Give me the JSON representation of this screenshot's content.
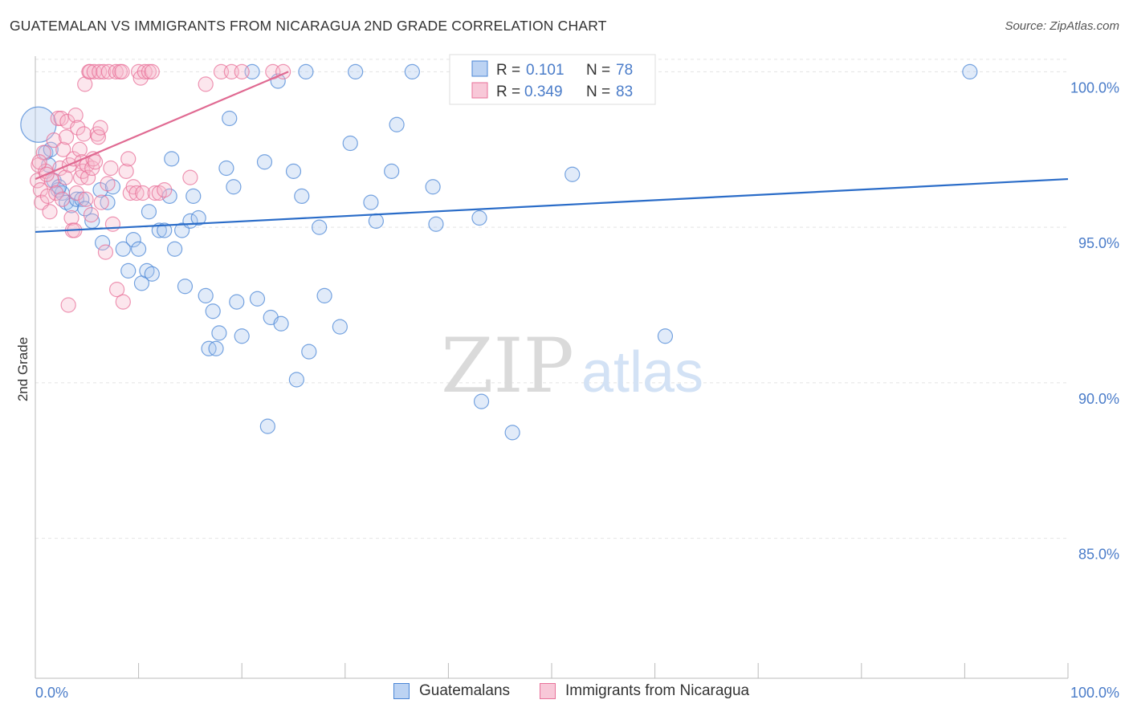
{
  "title": "GUATEMALAN VS IMMIGRANTS FROM NICARAGUA 2ND GRADE CORRELATION CHART",
  "source": "Source: ZipAtlas.com",
  "watermark": {
    "zip": "ZIP",
    "atlas": "atlas"
  },
  "colors": {
    "blue": "#4a86d6",
    "blue_fill": "#a9c7ef",
    "pink": "#e8729a",
    "pink_fill": "#f5b6cb",
    "blue_line": "#2a6cc8",
    "pink_line": "#e06a92",
    "axis_text": "#4a7cc9"
  },
  "legend": {
    "r_label": "R =",
    "n_label": "N =",
    "series": [
      {
        "r": "0.101",
        "n": "78"
      },
      {
        "r": "0.349",
        "n": "83"
      }
    ]
  },
  "chart_data": {
    "type": "scatter",
    "title": "GUATEMALAN VS IMMIGRANTS FROM NICARAGUA 2ND GRADE CORRELATION CHART",
    "xlabel": "",
    "ylabel": "2nd Grade",
    "xlim": [
      0,
      100
    ],
    "ylim": [
      80.5,
      100.5
    ],
    "x_tick_labels": [
      "0.0%",
      "100.0%"
    ],
    "y_ticks": [
      85,
      90,
      95,
      100
    ],
    "y_tick_labels": [
      "85.0%",
      "90.0%",
      "95.0%",
      "100.0%"
    ],
    "grid": "horizontal dashed",
    "legend_position": "top-center",
    "series": [
      {
        "name": "Guatemalans",
        "trend": {
          "x": [
            0,
            100
          ],
          "y": [
            94.85,
            96.55
          ]
        },
        "points": [
          [
            0.3,
            98.3
          ],
          [
            1.0,
            97.4
          ],
          [
            1.3,
            97.0
          ],
          [
            1.8,
            96.5
          ],
          [
            2.2,
            96.2
          ],
          [
            2.6,
            96.1
          ],
          [
            3.0,
            95.8
          ],
          [
            3.5,
            95.7
          ],
          [
            4.0,
            95.9
          ],
          [
            4.5,
            95.9
          ],
          [
            4.8,
            95.6
          ],
          [
            5.5,
            95.2
          ],
          [
            6.3,
            96.2
          ],
          [
            7.0,
            95.8
          ],
          [
            7.5,
            96.3
          ],
          [
            6.5,
            94.5
          ],
          [
            8.5,
            94.3
          ],
          [
            9.0,
            93.6
          ],
          [
            9.5,
            94.6
          ],
          [
            10.0,
            94.3
          ],
          [
            10.3,
            93.2
          ],
          [
            10.8,
            93.6
          ],
          [
            11.0,
            95.5
          ],
          [
            11.3,
            93.5
          ],
          [
            12.0,
            94.9
          ],
          [
            12.5,
            94.9
          ],
          [
            13.0,
            96.0
          ],
          [
            13.2,
            97.2
          ],
          [
            13.5,
            94.3
          ],
          [
            14.2,
            94.9
          ],
          [
            14.5,
            93.1
          ],
          [
            15.0,
            95.2
          ],
          [
            15.3,
            96.0
          ],
          [
            15.8,
            95.3
          ],
          [
            16.5,
            92.8
          ],
          [
            16.8,
            91.1
          ],
          [
            17.2,
            92.3
          ],
          [
            17.5,
            91.1
          ],
          [
            17.8,
            91.6
          ],
          [
            18.5,
            96.9
          ],
          [
            18.8,
            98.5
          ],
          [
            19.2,
            96.3
          ],
          [
            19.5,
            92.6
          ],
          [
            20.0,
            91.5
          ],
          [
            21.0,
            100.0
          ],
          [
            21.5,
            92.7
          ],
          [
            22.2,
            97.1
          ],
          [
            22.5,
            88.6
          ],
          [
            22.8,
            92.1
          ],
          [
            23.5,
            99.7
          ],
          [
            23.8,
            91.9
          ],
          [
            25.0,
            96.8
          ],
          [
            25.3,
            90.1
          ],
          [
            25.8,
            96.0
          ],
          [
            26.2,
            100.0
          ],
          [
            26.5,
            91.0
          ],
          [
            27.5,
            95.0
          ],
          [
            28.0,
            92.8
          ],
          [
            29.5,
            91.8
          ],
          [
            30.5,
            97.7
          ],
          [
            31.0,
            100.0
          ],
          [
            32.5,
            95.8
          ],
          [
            33.0,
            95.2
          ],
          [
            34.5,
            96.8
          ],
          [
            35.0,
            98.3
          ],
          [
            36.5,
            100.0
          ],
          [
            38.5,
            96.3
          ],
          [
            38.8,
            95.1
          ],
          [
            43.0,
            95.3
          ],
          [
            43.2,
            89.4
          ],
          [
            46.2,
            88.4
          ],
          [
            52.0,
            96.7
          ],
          [
            57.0,
            100.0
          ],
          [
            58.5,
            100.0
          ],
          [
            61.0,
            91.5
          ],
          [
            90.5,
            100.0
          ],
          [
            2.3,
            96.3
          ],
          [
            1.5,
            97.5
          ]
        ]
      },
      {
        "name": "Immigrants from Nicaragua",
        "trend": {
          "x": [
            0,
            24.5
          ],
          "y": [
            96.55,
            100.0
          ]
        },
        "points": [
          [
            0.2,
            96.5
          ],
          [
            0.3,
            97.0
          ],
          [
            0.5,
            96.2
          ],
          [
            0.6,
            95.8
          ],
          [
            0.8,
            97.4
          ],
          [
            1.0,
            96.8
          ],
          [
            1.2,
            96.0
          ],
          [
            1.4,
            95.5
          ],
          [
            1.6,
            96.5
          ],
          [
            1.8,
            97.8
          ],
          [
            2.0,
            96.1
          ],
          [
            2.2,
            98.5
          ],
          [
            2.4,
            96.9
          ],
          [
            2.5,
            98.5
          ],
          [
            2.7,
            97.5
          ],
          [
            2.9,
            96.6
          ],
          [
            3.0,
            97.9
          ],
          [
            3.1,
            98.4
          ],
          [
            3.2,
            92.5
          ],
          [
            3.3,
            97.0
          ],
          [
            3.5,
            95.3
          ],
          [
            3.6,
            94.9
          ],
          [
            3.7,
            97.2
          ],
          [
            3.8,
            94.9
          ],
          [
            3.9,
            98.6
          ],
          [
            4.0,
            96.1
          ],
          [
            4.1,
            98.2
          ],
          [
            4.3,
            97.5
          ],
          [
            4.4,
            96.6
          ],
          [
            4.5,
            97.1
          ],
          [
            4.6,
            96.8
          ],
          [
            4.7,
            98.0
          ],
          [
            4.8,
            99.6
          ],
          [
            4.9,
            95.9
          ],
          [
            5.0,
            97.0
          ],
          [
            5.1,
            96.6
          ],
          [
            5.2,
            100.0
          ],
          [
            5.3,
            100.0
          ],
          [
            5.4,
            95.4
          ],
          [
            5.5,
            96.9
          ],
          [
            5.6,
            97.2
          ],
          [
            5.7,
            100.0
          ],
          [
            5.8,
            97.1
          ],
          [
            6.0,
            98.0
          ],
          [
            6.1,
            97.9
          ],
          [
            6.2,
            100.0
          ],
          [
            6.3,
            98.2
          ],
          [
            6.4,
            95.8
          ],
          [
            6.6,
            100.0
          ],
          [
            6.8,
            94.2
          ],
          [
            7.0,
            96.4
          ],
          [
            7.1,
            100.0
          ],
          [
            7.3,
            96.9
          ],
          [
            7.5,
            95.1
          ],
          [
            7.8,
            100.0
          ],
          [
            7.9,
            93.0
          ],
          [
            8.2,
            100.0
          ],
          [
            8.4,
            100.0
          ],
          [
            8.5,
            92.6
          ],
          [
            8.8,
            96.8
          ],
          [
            9.0,
            97.2
          ],
          [
            9.2,
            96.1
          ],
          [
            9.5,
            96.3
          ],
          [
            9.8,
            96.1
          ],
          [
            10.0,
            100.0
          ],
          [
            10.2,
            99.8
          ],
          [
            10.4,
            96.1
          ],
          [
            10.6,
            100.0
          ],
          [
            11.0,
            100.0
          ],
          [
            11.3,
            100.0
          ],
          [
            11.6,
            96.1
          ],
          [
            12.0,
            96.1
          ],
          [
            12.5,
            96.2
          ],
          [
            15.0,
            96.6
          ],
          [
            16.5,
            99.6
          ],
          [
            18.0,
            100.0
          ],
          [
            19.0,
            100.0
          ],
          [
            20.0,
            100.0
          ],
          [
            23.0,
            100.0
          ],
          [
            24.0,
            100.0
          ],
          [
            0.4,
            97.1
          ],
          [
            1.1,
            96.7
          ],
          [
            2.6,
            95.9
          ]
        ]
      }
    ]
  }
}
